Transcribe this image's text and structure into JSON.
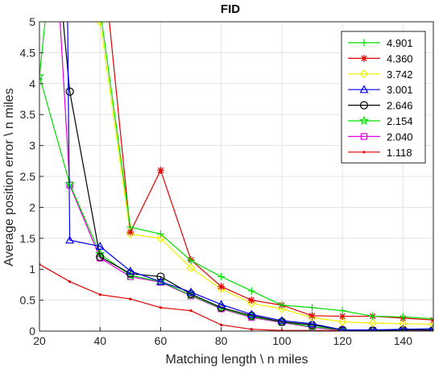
{
  "chart_data": {
    "type": "line",
    "title": "FID",
    "xlabel": "Matching length \\ n miles",
    "ylabel": "Average position error \\ n miles",
    "xlim": [
      20,
      150
    ],
    "ylim": [
      0,
      5
    ],
    "xticks": [
      "20",
      "40",
      "60",
      "80",
      "100",
      "120",
      "140"
    ],
    "yticks": [
      "0",
      "0.5",
      "1",
      "1.5",
      "2",
      "2.5",
      "3",
      "3.5",
      "4",
      "4.5",
      "5"
    ],
    "grid": true,
    "legend_position": "top-right",
    "series": [
      {
        "name": "4.901",
        "color": "#00e000",
        "marker": "plus",
        "x": [
          20,
          30,
          40,
          50,
          60,
          70,
          80,
          90,
          100,
          110,
          120,
          130,
          140,
          150
        ],
        "y": [
          null,
          null,
          5.2,
          1.68,
          1.57,
          1.14,
          0.88,
          0.65,
          0.42,
          0.38,
          0.33,
          0.24,
          0.23,
          0.2
        ]
      },
      {
        "name": "4.360",
        "color": "#e00000",
        "marker": "asterisk",
        "x": [
          20,
          30,
          40,
          50,
          60,
          70,
          80,
          90,
          100,
          110,
          120,
          130,
          140,
          150
        ],
        "y": [
          null,
          null,
          null,
          1.6,
          2.6,
          1.15,
          0.72,
          0.5,
          0.42,
          0.25,
          0.24,
          0.24,
          0.21,
          0.18
        ]
      },
      {
        "name": "3.742",
        "color": "#f0f000",
        "marker": "diamond",
        "x": [
          20,
          30,
          40,
          50,
          60,
          70,
          80,
          90,
          100,
          110,
          120,
          130,
          140,
          150
        ],
        "y": [
          null,
          null,
          5.0,
          1.57,
          1.5,
          1.02,
          0.68,
          0.45,
          0.36,
          0.22,
          0.15,
          0.13,
          0.12,
          0.11
        ]
      },
      {
        "name": "3.001",
        "color": "#0000ee",
        "marker": "triangle",
        "x": [
          20,
          30,
          40,
          50,
          60,
          70,
          80,
          90,
          100,
          110,
          120,
          130,
          140,
          150
        ],
        "y": [
          null,
          1.47,
          1.37,
          0.97,
          0.8,
          0.63,
          0.43,
          0.27,
          0.17,
          0.12,
          0.02,
          0.02,
          0.03,
          0.04
        ]
      },
      {
        "name": "2.646",
        "color": "#000000",
        "marker": "circle",
        "x": [
          20,
          30,
          40,
          50,
          60,
          70,
          80,
          90,
          100,
          110,
          120,
          130,
          140,
          150
        ],
        "y": [
          null,
          3.87,
          1.2,
          0.93,
          0.88,
          0.6,
          0.38,
          0.25,
          0.15,
          0.1,
          0.02,
          0.01,
          0.02,
          0.02
        ]
      },
      {
        "name": "2.154",
        "color": "#00e000",
        "marker": "star",
        "x": [
          20,
          30,
          40,
          50,
          60,
          70,
          80,
          90,
          100,
          110,
          120,
          130,
          140,
          150
        ],
        "y": [
          4.12,
          2.38,
          1.25,
          0.9,
          0.8,
          0.58,
          0.37,
          0.23,
          0.15,
          0.07,
          0.02,
          0.01,
          0.02,
          0.02
        ]
      },
      {
        "name": "2.040",
        "color": "#e000e0",
        "marker": "square",
        "x": [
          20,
          30,
          40,
          50,
          60,
          70,
          80,
          90,
          100,
          110,
          120,
          130,
          140,
          150
        ],
        "y": [
          null,
          2.36,
          1.18,
          0.88,
          0.79,
          0.57,
          0.36,
          0.22,
          0.14,
          0.06,
          0.01,
          0.01,
          0.01,
          0.01
        ]
      },
      {
        "name": "1.118",
        "color": "#e00000",
        "marker": "dot",
        "x": [
          20,
          30,
          40,
          50,
          60,
          70,
          80,
          90,
          100,
          110,
          120,
          130,
          140,
          150
        ],
        "y": [
          1.08,
          0.8,
          0.59,
          0.52,
          0.38,
          0.33,
          0.1,
          0.03,
          0.01,
          0.01,
          0.01,
          0.01,
          0.01,
          0.01
        ]
      }
    ],
    "offscale": [
      {
        "series": "4.901",
        "x": [
          20,
          30
        ],
        "y": [
          5.4,
          6.5
        ]
      },
      {
        "series": "4.360",
        "x": [
          40,
          50
        ],
        "y": [
          6.5,
          1.6
        ]
      },
      {
        "series": "3.742",
        "x": [
          20,
          30
        ],
        "y": [
          6.5,
          6.5
        ]
      },
      {
        "series": "3.001",
        "x": [
          29,
          30
        ],
        "y": [
          6.5,
          1.47
        ]
      },
      {
        "series": "2.646",
        "x": [
          25,
          30
        ],
        "y": [
          6.5,
          3.87
        ]
      },
      {
        "series": "2.154",
        "x": [
          20,
          25
        ],
        "y": [
          4.12,
          6.5
        ]
      },
      {
        "series": "2.040",
        "x": [
          25,
          30
        ],
        "y": [
          6.5,
          2.36
        ]
      }
    ]
  }
}
